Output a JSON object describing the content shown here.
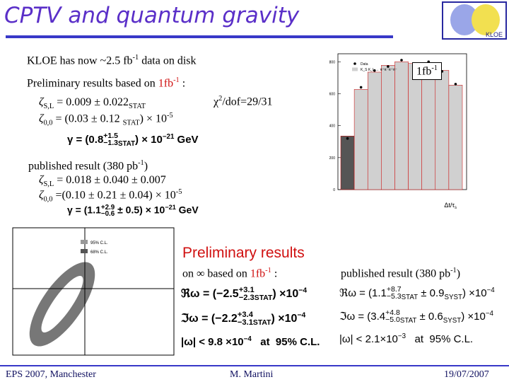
{
  "title": "CPTV and quantum gravity",
  "logo": "KLOE",
  "left": {
    "disk": [
      "KLOE has now ~2.5 fb",
      "-1",
      " data on disk"
    ],
    "prelim": [
      "Preliminary results based on ",
      "1fb",
      "-1",
      " :"
    ],
    "zsl": [
      "ζ",
      "S,L",
      " = 0.009  ± 0.022",
      "STAT"
    ],
    "z00": [
      "ζ",
      "0,0",
      " = (0.03 ± 0.12 ",
      "STAT",
      ") × 10",
      "-5"
    ],
    "chi": [
      "χ",
      "2",
      "/dof=29/31"
    ],
    "gamma": [
      "γ = (0.8",
      "+1.5",
      "−1.3",
      "STAT",
      ") × 10",
      "−21",
      " GeV"
    ],
    "pub": [
      "published result (380 pb",
      "-1",
      ")"
    ],
    "pzsl": [
      "ζ",
      "S,L",
      " = 0.018  ± 0.040 ± 0.007"
    ],
    "pz00": [
      "ζ",
      "0,0",
      " =(0.10 ± 0.21 ± 0.04) × 10",
      "-5"
    ],
    "pgamma": [
      "γ = (1.1",
      "+2.9",
      "−0.6",
      " ± 0.5) × 10",
      "−21",
      " GeV"
    ]
  },
  "histogram": {
    "type": "bar",
    "box_label": [
      "1fb",
      "-1"
    ],
    "x_label": [
      "Δt/τ",
      "s"
    ],
    "series": [
      {
        "name": "Data",
        "color": "#000000",
        "values": [
          320,
          640,
          745,
          770,
          810,
          780,
          800,
          740,
          660
        ]
      },
      {
        "name": "K_S K_L → π⁺π⁻π⁺π⁻",
        "color": "#d0d0d0",
        "values": [
          335,
          627,
          735,
          778,
          800,
          789,
          789,
          746,
          654
        ]
      }
    ],
    "ylim": [
      0,
      850
    ],
    "yticks": [
      0,
      200,
      400,
      600,
      800
    ]
  },
  "contour": {
    "legend": [
      "95% C.L.",
      "68% C.L."
    ]
  },
  "omega": {
    "heading": "Preliminary results",
    "based": [
      "on ∞ based on ",
      "1fb",
      "-1",
      " :"
    ],
    "re": [
      "ℜω = (−2.5",
      "+3.1",
      "−2.3",
      "STAT",
      ") ×10",
      "−4"
    ],
    "im": [
      "ℑω = (−2.2",
      "+3.4",
      "−3.1",
      "STAT",
      ") ×10",
      "−4"
    ],
    "abs": [
      "|ω| < 9.8 ×10",
      "−4",
      "   at  95% C.L."
    ]
  },
  "published_omega": {
    "heading": [
      "published result (380 pb",
      "-1",
      ")"
    ],
    "re": [
      "ℜω = (1.1",
      "+8.7",
      "−5.3",
      "STAT",
      " ± 0.9",
      "SYST",
      ") ×10",
      "−4"
    ],
    "im": [
      "ℑω = (3.4",
      "+4.8",
      "−5.0",
      "STAT",
      " ± 0.6",
      "SYST",
      ") ×10",
      "−4"
    ],
    "abs": [
      "|ω| < 2.1×10",
      "−3",
      "   at  95% C.L."
    ]
  },
  "footer": {
    "left": "EPS 2007, Manchester",
    "center": "M. Martini",
    "right": "19/07/2007"
  }
}
